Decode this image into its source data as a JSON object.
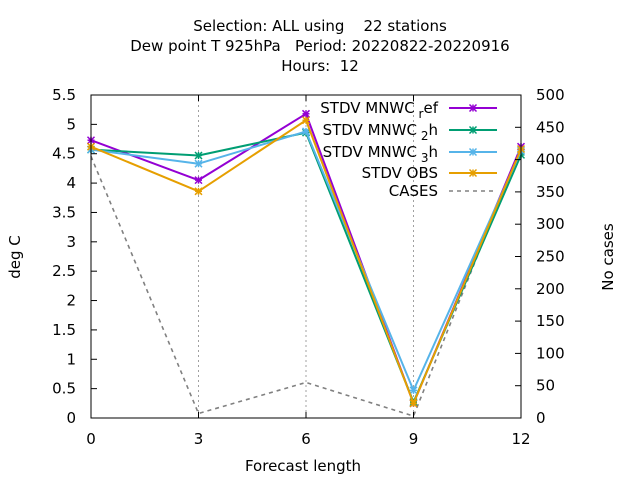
{
  "chart_data": {
    "type": "line",
    "title": {
      "line1": "Selection: ALL using    22 stations",
      "line2": "Dew point T 925hPa   Period: 20220822-20220916",
      "line3": "Hours:  12"
    },
    "xlabel": "Forecast length",
    "ylabel": "deg C",
    "y2label": "No cases",
    "x": [
      0,
      3,
      6,
      9,
      12
    ],
    "xlim": [
      0,
      12
    ],
    "ylim": [
      0,
      5.5
    ],
    "y2lim": [
      0,
      500
    ],
    "xticks": [
      "0",
      "3",
      "6",
      "9",
      "12"
    ],
    "yticks": [
      "0",
      "0.5",
      "1",
      "1.5",
      "2",
      "2.5",
      "3",
      "3.5",
      "4",
      "4.5",
      "5",
      "5.5"
    ],
    "y2ticks": [
      "0",
      "50",
      "100",
      "150",
      "200",
      "250",
      "300",
      "350",
      "400",
      "450",
      "500"
    ],
    "grid": true,
    "legend_position": "top-right",
    "series": [
      {
        "name": "STDV MNWC_ref",
        "name_base": "STDV MNWC",
        "name_sub": "r",
        "name_tail": "ef",
        "color": "#9400d3",
        "marker": "x",
        "axis": "y1",
        "dash": "solid",
        "values": [
          4.73,
          4.05,
          5.18,
          0.25,
          4.62
        ]
      },
      {
        "name": "STDV MNWC_2h",
        "name_base": "STDV MNWC",
        "name_sub": "2",
        "name_tail": "h",
        "color": "#009e73",
        "marker": "x",
        "axis": "y1",
        "dash": "solid",
        "values": [
          4.57,
          4.47,
          4.86,
          0.27,
          4.48
        ]
      },
      {
        "name": "STDV MNWC_3h",
        "name_base": "STDV MNWC",
        "name_sub": "3",
        "name_tail": "h",
        "color": "#56b4e9",
        "marker": "x",
        "axis": "y1",
        "dash": "solid",
        "values": [
          4.57,
          4.33,
          4.88,
          0.47,
          4.55
        ]
      },
      {
        "name": "STDV OBS",
        "name_base": "STDV OBS",
        "name_sub": "",
        "name_tail": "",
        "color": "#e69f00",
        "marker": "x",
        "axis": "y1",
        "dash": "solid",
        "values": [
          4.62,
          3.86,
          5.07,
          0.25,
          4.58
        ]
      },
      {
        "name": "CASES",
        "name_base": "CASES",
        "name_sub": "",
        "name_tail": "",
        "color": "#808080",
        "marker": "none",
        "axis": "y2",
        "dash": "dashed",
        "values": [
          405,
          7,
          55,
          3,
          420
        ]
      }
    ]
  }
}
